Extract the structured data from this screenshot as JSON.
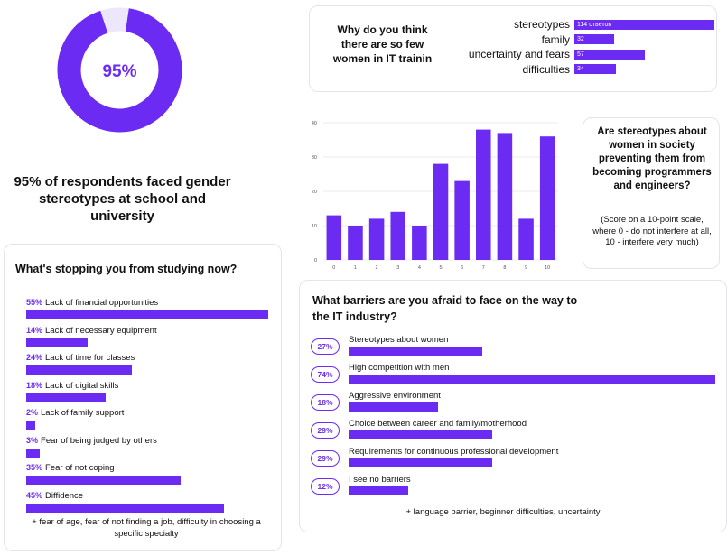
{
  "colors": {
    "accent": "#6c2bf2",
    "text": "#111111",
    "border": "#e4e4ea"
  },
  "donut": {
    "value": 95,
    "label": "95%"
  },
  "headline": "95% of respondents faced gender stereotypes at school and university",
  "why_card": {
    "question": "Why do you think there are so few women in IT trainin",
    "items": [
      {
        "label": "stereotypes",
        "value": 114,
        "value_label": "114 ответов"
      },
      {
        "label": "family",
        "value": 32,
        "value_label": "32"
      },
      {
        "label": "uncertainty and fears",
        "value": 57,
        "value_label": "57"
      },
      {
        "label": "difficulties",
        "value": 34,
        "value_label": "34"
      }
    ]
  },
  "stereo_card": {
    "title": "Are stereotypes about women in society preventing them from becoming programmers and engineers?",
    "note": "(Score on a 10-point scale, where 0 - do not interfere at all, 10 - interfere very much)"
  },
  "stopping_card": {
    "title": "What's stopping you from studying now?",
    "items": [
      {
        "pct": "55%",
        "label": "Lack of financial opportunities",
        "value": 55
      },
      {
        "pct": "14%",
        "label": "Lack of necessary equipment",
        "value": 14
      },
      {
        "pct": "24%",
        "label": "Lack of time for classes",
        "value": 24
      },
      {
        "pct": "18%",
        "label": "Lack of digital skills",
        "value": 18
      },
      {
        "pct": "2%",
        "label": "Lack of family support",
        "value": 2
      },
      {
        "pct": "3%",
        "label": "Fear of being judged by others",
        "value": 3
      },
      {
        "pct": "35%",
        "label": "Fear of not coping",
        "value": 35
      },
      {
        "pct": "45%",
        "label": "Diffidence",
        "value": 45
      }
    ],
    "footer": "+ fear of age, fear of not finding a job, difficulty in choosing a specific specialty"
  },
  "barriers_card": {
    "title": "What barriers are you afraid to face on the way to the IT industry?",
    "items": [
      {
        "pct": "27%",
        "label": "Stereotypes about women",
        "value": 27
      },
      {
        "pct": "74%",
        "label": "High competition with men",
        "value": 74
      },
      {
        "pct": "18%",
        "label": "Aggressive environment",
        "value": 18
      },
      {
        "pct": "29%",
        "label": "Choice between career and family/motherhood",
        "value": 29
      },
      {
        "pct": "29%",
        "label": "Requirements for continuous professional development",
        "value": 29
      },
      {
        "pct": "12%",
        "label": "I see no barriers",
        "value": 12
      }
    ],
    "footer": "+ language barrier, beginner difficulties, uncertainty"
  },
  "chart_data": {
    "type": "bar",
    "categories": [
      "0",
      "1",
      "2",
      "3",
      "4",
      "5",
      "6",
      "7",
      "8",
      "9",
      "10"
    ],
    "values": [
      13,
      10,
      12,
      14,
      10,
      28,
      23,
      38,
      37,
      12,
      36
    ],
    "yticks": [
      "0",
      "10",
      "20",
      "30",
      "40"
    ],
    "ylim": [
      0,
      40
    ],
    "grid": true
  }
}
